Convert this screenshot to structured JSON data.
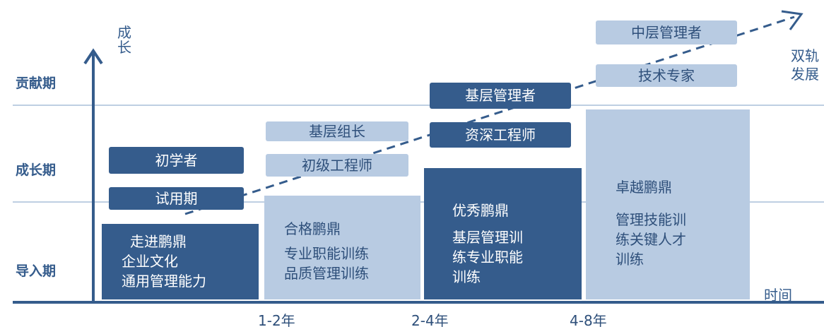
{
  "stages": [
    "贡献期",
    "成长期",
    "导入期"
  ],
  "axis": {
    "y_label": "成长",
    "x_label": "时间",
    "end_label_line1": "双轨",
    "end_label_line2": "发展"
  },
  "ticks": [
    "1-2年",
    "2-4年",
    "4-8年"
  ],
  "columns": [
    {
      "lines": [
        "走进鹏鼎",
        "企业文化",
        "通用管理能力"
      ]
    },
    {
      "lines": [
        "合格鹏鼎",
        "专业职能训练",
        "品质管理训练"
      ]
    },
    {
      "heading": "优秀鹏鼎",
      "lines": [
        "基层管理训",
        "练专业职能",
        "训练"
      ]
    },
    {
      "heading": "卓越鹏鼎",
      "lines": [
        "管理技能训",
        "练关键人才",
        "训练"
      ]
    }
  ],
  "roles": {
    "trial": "试用期",
    "beginner": "初学者",
    "junior_engineer": "初级工程师",
    "team_leader": "基层组长",
    "senior_engineer": "资深工程师",
    "first_line_manager": "基层管理者",
    "tech_expert": "技术专家",
    "middle_manager": "中层管理者"
  },
  "colors": {
    "dark": "#355c8c",
    "light": "#b8cbe2",
    "axis": "#355c8c",
    "grid": "#a9bfd8"
  }
}
